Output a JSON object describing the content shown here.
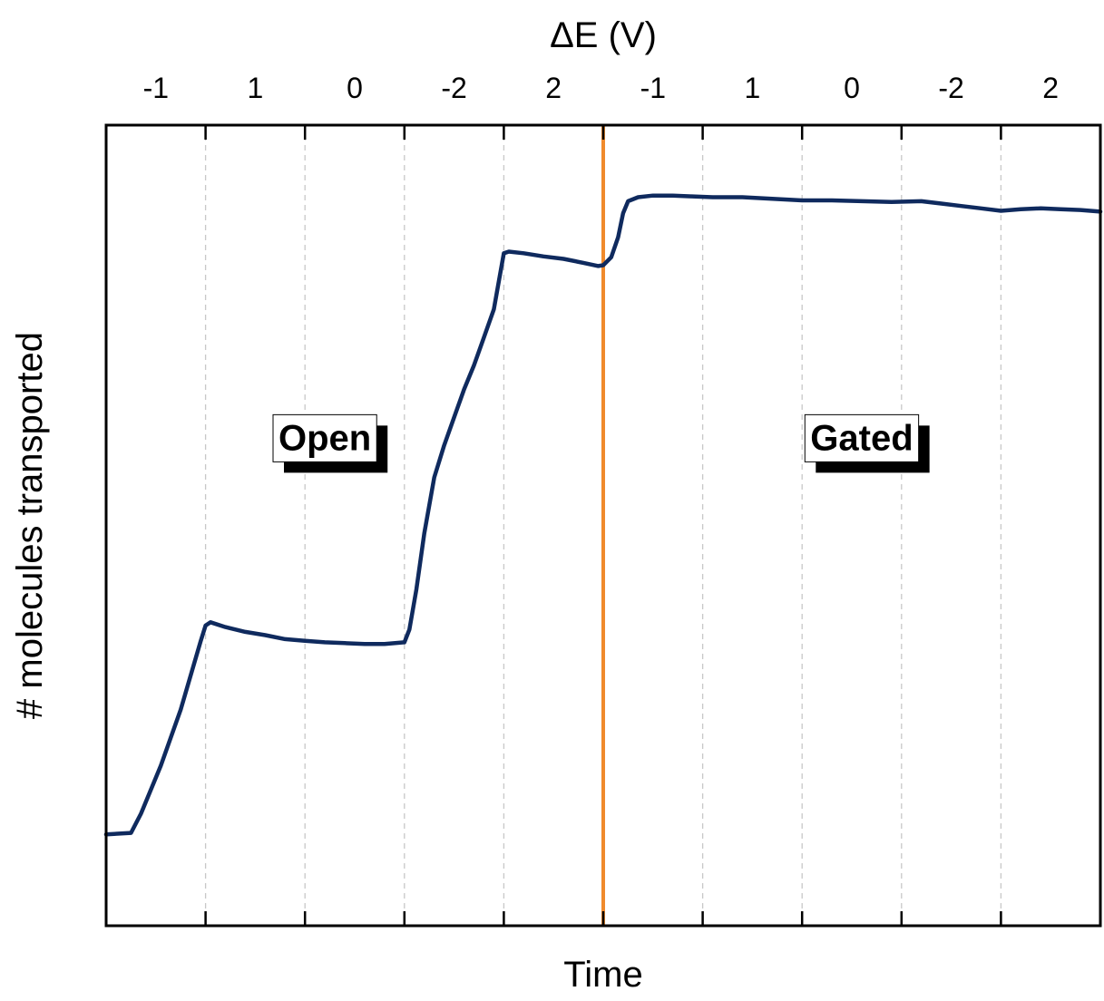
{
  "chart_data": {
    "type": "line",
    "title": "",
    "top_axis": {
      "label": "ΔE (V)",
      "segments": [
        {
          "value": -1,
          "label": "-1"
        },
        {
          "value": 1,
          "label": "1"
        },
        {
          "value": 0,
          "label": "0"
        },
        {
          "value": -2,
          "label": "-2"
        },
        {
          "value": 2,
          "label": "2"
        },
        {
          "value": -1,
          "label": "-1"
        },
        {
          "value": 1,
          "label": "1"
        },
        {
          "value": 0,
          "label": "0"
        },
        {
          "value": -2,
          "label": "-2"
        },
        {
          "value": 2,
          "label": "2"
        }
      ]
    },
    "xlabel": "Time",
    "ylabel": "# molecules transported",
    "xlim": [
      0,
      10
    ],
    "ylim": [
      0,
      100
    ],
    "grid": "vertical dashed at segment boundaries",
    "divider": {
      "x": 5,
      "color": "#f08a2c"
    },
    "regions": [
      {
        "label": "Open",
        "x_center": 2.2,
        "y_center": 61
      },
      {
        "label": "Gated",
        "x_center": 7.6,
        "y_center": 61
      }
    ],
    "series": [
      {
        "name": "transport",
        "color": "#0f2a5e",
        "points": [
          [
            0.0,
            11.4
          ],
          [
            0.25,
            11.6
          ],
          [
            0.35,
            14.0
          ],
          [
            0.55,
            20.0
          ],
          [
            0.75,
            27.0
          ],
          [
            0.95,
            35.5
          ],
          [
            1.0,
            37.5
          ],
          [
            1.05,
            37.9
          ],
          [
            1.2,
            37.3
          ],
          [
            1.4,
            36.7
          ],
          [
            1.6,
            36.3
          ],
          [
            1.8,
            35.8
          ],
          [
            2.0,
            35.6
          ],
          [
            2.2,
            35.4
          ],
          [
            2.4,
            35.3
          ],
          [
            2.6,
            35.2
          ],
          [
            2.8,
            35.2
          ],
          [
            3.0,
            35.4
          ],
          [
            3.05,
            37.0
          ],
          [
            3.12,
            42.0
          ],
          [
            3.2,
            49.0
          ],
          [
            3.3,
            56.0
          ],
          [
            3.4,
            60.0
          ],
          [
            3.5,
            63.5
          ],
          [
            3.6,
            67.0
          ],
          [
            3.7,
            70.0
          ],
          [
            3.8,
            73.5
          ],
          [
            3.9,
            77.0
          ],
          [
            3.95,
            80.5
          ],
          [
            4.0,
            84.0
          ],
          [
            4.05,
            84.2
          ],
          [
            4.2,
            84.0
          ],
          [
            4.4,
            83.6
          ],
          [
            4.6,
            83.3
          ],
          [
            4.8,
            82.8
          ],
          [
            4.95,
            82.4
          ],
          [
            5.0,
            82.5
          ],
          [
            5.08,
            83.5
          ],
          [
            5.15,
            86.0
          ],
          [
            5.2,
            89.0
          ],
          [
            5.25,
            90.5
          ],
          [
            5.35,
            91.0
          ],
          [
            5.5,
            91.2
          ],
          [
            5.7,
            91.2
          ],
          [
            5.9,
            91.1
          ],
          [
            6.1,
            91.0
          ],
          [
            6.4,
            91.0
          ],
          [
            6.7,
            90.8
          ],
          [
            7.0,
            90.6
          ],
          [
            7.3,
            90.6
          ],
          [
            7.6,
            90.5
          ],
          [
            7.9,
            90.4
          ],
          [
            8.2,
            90.5
          ],
          [
            8.4,
            90.2
          ],
          [
            8.6,
            89.9
          ],
          [
            8.8,
            89.6
          ],
          [
            9.0,
            89.3
          ],
          [
            9.2,
            89.5
          ],
          [
            9.4,
            89.6
          ],
          [
            9.6,
            89.5
          ],
          [
            9.8,
            89.4
          ],
          [
            10.0,
            89.2
          ]
        ]
      }
    ]
  }
}
